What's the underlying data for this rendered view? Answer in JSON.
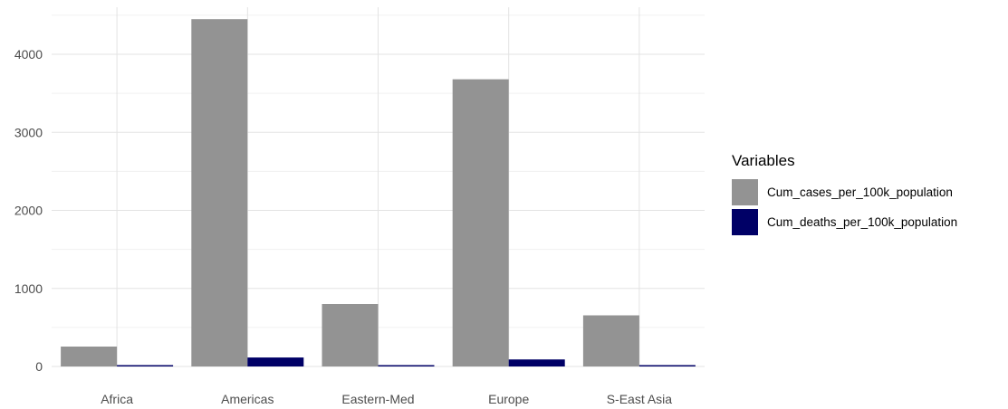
{
  "chart_data": {
    "type": "bar",
    "title": "",
    "xlabel": "",
    "ylabel": "",
    "categories": [
      "Africa",
      "Americas",
      "Eastern-Med",
      "Europe",
      "S-East Asia"
    ],
    "series": [
      {
        "name": "Cum_cases_per_100k_population",
        "values": [
          255,
          4450,
          800,
          3680,
          655
        ],
        "color": "#939393"
      },
      {
        "name": "Cum_deaths_per_100k_population",
        "values": [
          5,
          115,
          10,
          90,
          8
        ],
        "color": "#000066"
      }
    ],
    "ylim": [
      0,
      4600
    ],
    "yticks": [
      0,
      1000,
      2000,
      3000,
      4000
    ],
    "grid": true,
    "legend": {
      "title": "Variables",
      "position": "right"
    }
  }
}
